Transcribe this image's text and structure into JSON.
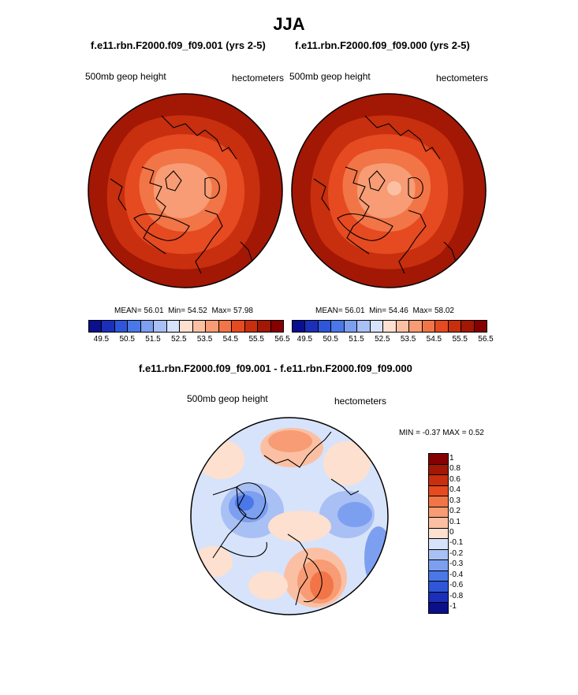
{
  "title": "JJA",
  "panels": [
    {
      "run_title": "f.e11.rbn.F2000.f09_f09.001 (yrs 2-5)",
      "field_label": "500mb geop height",
      "units_label": "hectometers",
      "stats": {
        "mean_label": "MEAN=",
        "mean": "56.01",
        "min_label": "Min=",
        "min": "54.52",
        "max_label": "Max=",
        "max": "57.98"
      }
    },
    {
      "run_title": "f.e11.rbn.F2000.f09_f09.000 (yrs 2-5)",
      "field_label": "500mb geop height",
      "units_label": "hectometers",
      "stats": {
        "mean_label": "MEAN=",
        "mean": "56.01",
        "min_label": "Min=",
        "min": "54.46",
        "max_label": "Max=",
        "max": "58.02"
      }
    }
  ],
  "colorbar_top": {
    "labels": [
      "49.5",
      "50.5",
      "51.5",
      "52.5",
      "53.5",
      "54.5",
      "55.5",
      "56.5"
    ],
    "colors": [
      "#0a0f8c",
      "#1b2fb8",
      "#2f56d9",
      "#4b78e8",
      "#7d9ff0",
      "#a9c0f5",
      "#d7e3fa",
      "#fde0cf",
      "#fbc0a3",
      "#f79c74",
      "#f27547",
      "#e64a21",
      "#c72f0e",
      "#a31705",
      "#850000"
    ]
  },
  "diff_panel": {
    "title": "f.e11.rbn.F2000.f09_f09.001 - f.e11.rbn.F2000.f09_f09.000",
    "field_label": "500mb geop height",
    "units_label": "hectometers",
    "minmax_text": "MIN = -0.37 MAX = 0.52"
  },
  "colorbar_diff": {
    "labels": [
      "1",
      "0.8",
      "0.6",
      "0.4",
      "0.3",
      "0.2",
      "0.1",
      "0",
      "-0.1",
      "-0.2",
      "-0.3",
      "-0.4",
      "-0.6",
      "-0.8",
      "-1"
    ],
    "colors": [
      "#850000",
      "#a31705",
      "#c72f0e",
      "#e64a21",
      "#f27547",
      "#f79c74",
      "#fbc0a3",
      "#fde0cf",
      "#d7e3fa",
      "#a9c0f5",
      "#7d9ff0",
      "#4b78e8",
      "#2f56d9",
      "#1b2fb8",
      "#0a0f8c"
    ]
  }
}
